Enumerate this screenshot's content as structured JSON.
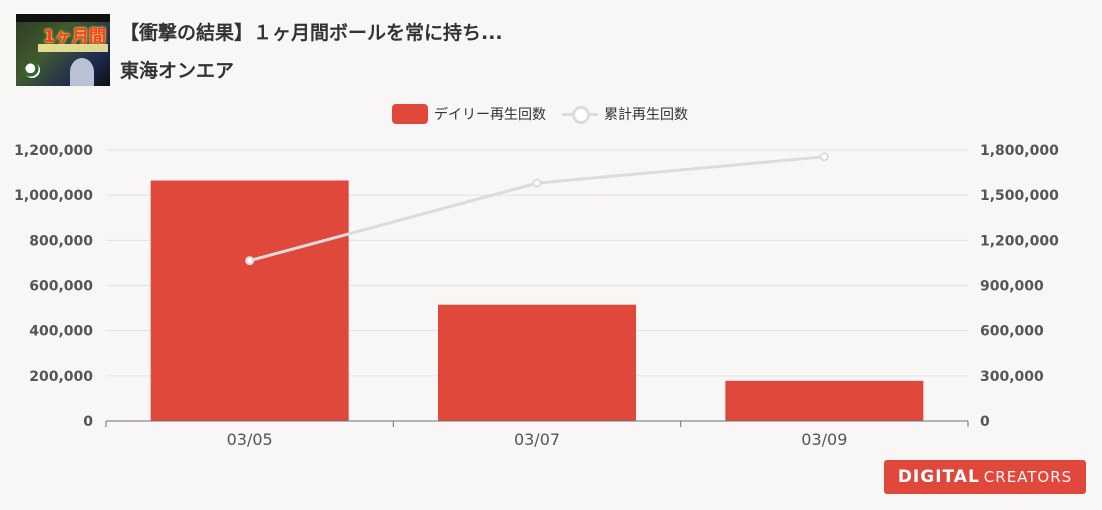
{
  "header": {
    "title": "【衝撃の結果】１ヶ月間ボールを常に持ち...",
    "channel": "東海オンエア",
    "thumbnail_text": "1ヶ月間"
  },
  "legend": {
    "daily_label": "デイリー再生回数",
    "total_label": "累計再生回数"
  },
  "logo": {
    "part1": "DIGITAL",
    "part2": "CREATORS"
  },
  "colors": {
    "bar": "#e1483c",
    "line": "#dcdcdc",
    "grid": "#dde3ee",
    "background": "#f8f7f5"
  },
  "chart_data": {
    "type": "bar",
    "categories": [
      "03/05",
      "03/07",
      "03/09"
    ],
    "series": [
      {
        "name": "デイリー再生回数",
        "type": "bar",
        "axis": "left",
        "values": [
          1065000,
          515000,
          178000
        ]
      },
      {
        "name": "累計再生回数",
        "type": "line",
        "axis": "right",
        "values": [
          1065000,
          1580000,
          1755000
        ]
      }
    ],
    "y_left": {
      "min": 0,
      "max": 1200000,
      "ticks": [
        "0",
        "200,000",
        "400,000",
        "600,000",
        "800,000",
        "1,000,000",
        "1,200,000"
      ]
    },
    "y_right": {
      "min": 0,
      "max": 1800000,
      "ticks": [
        "0",
        "300,000",
        "600,000",
        "900,000",
        "1,200,000",
        "1,500,000",
        "1,800,000"
      ]
    },
    "grid": true,
    "legend_position": "top-center"
  }
}
